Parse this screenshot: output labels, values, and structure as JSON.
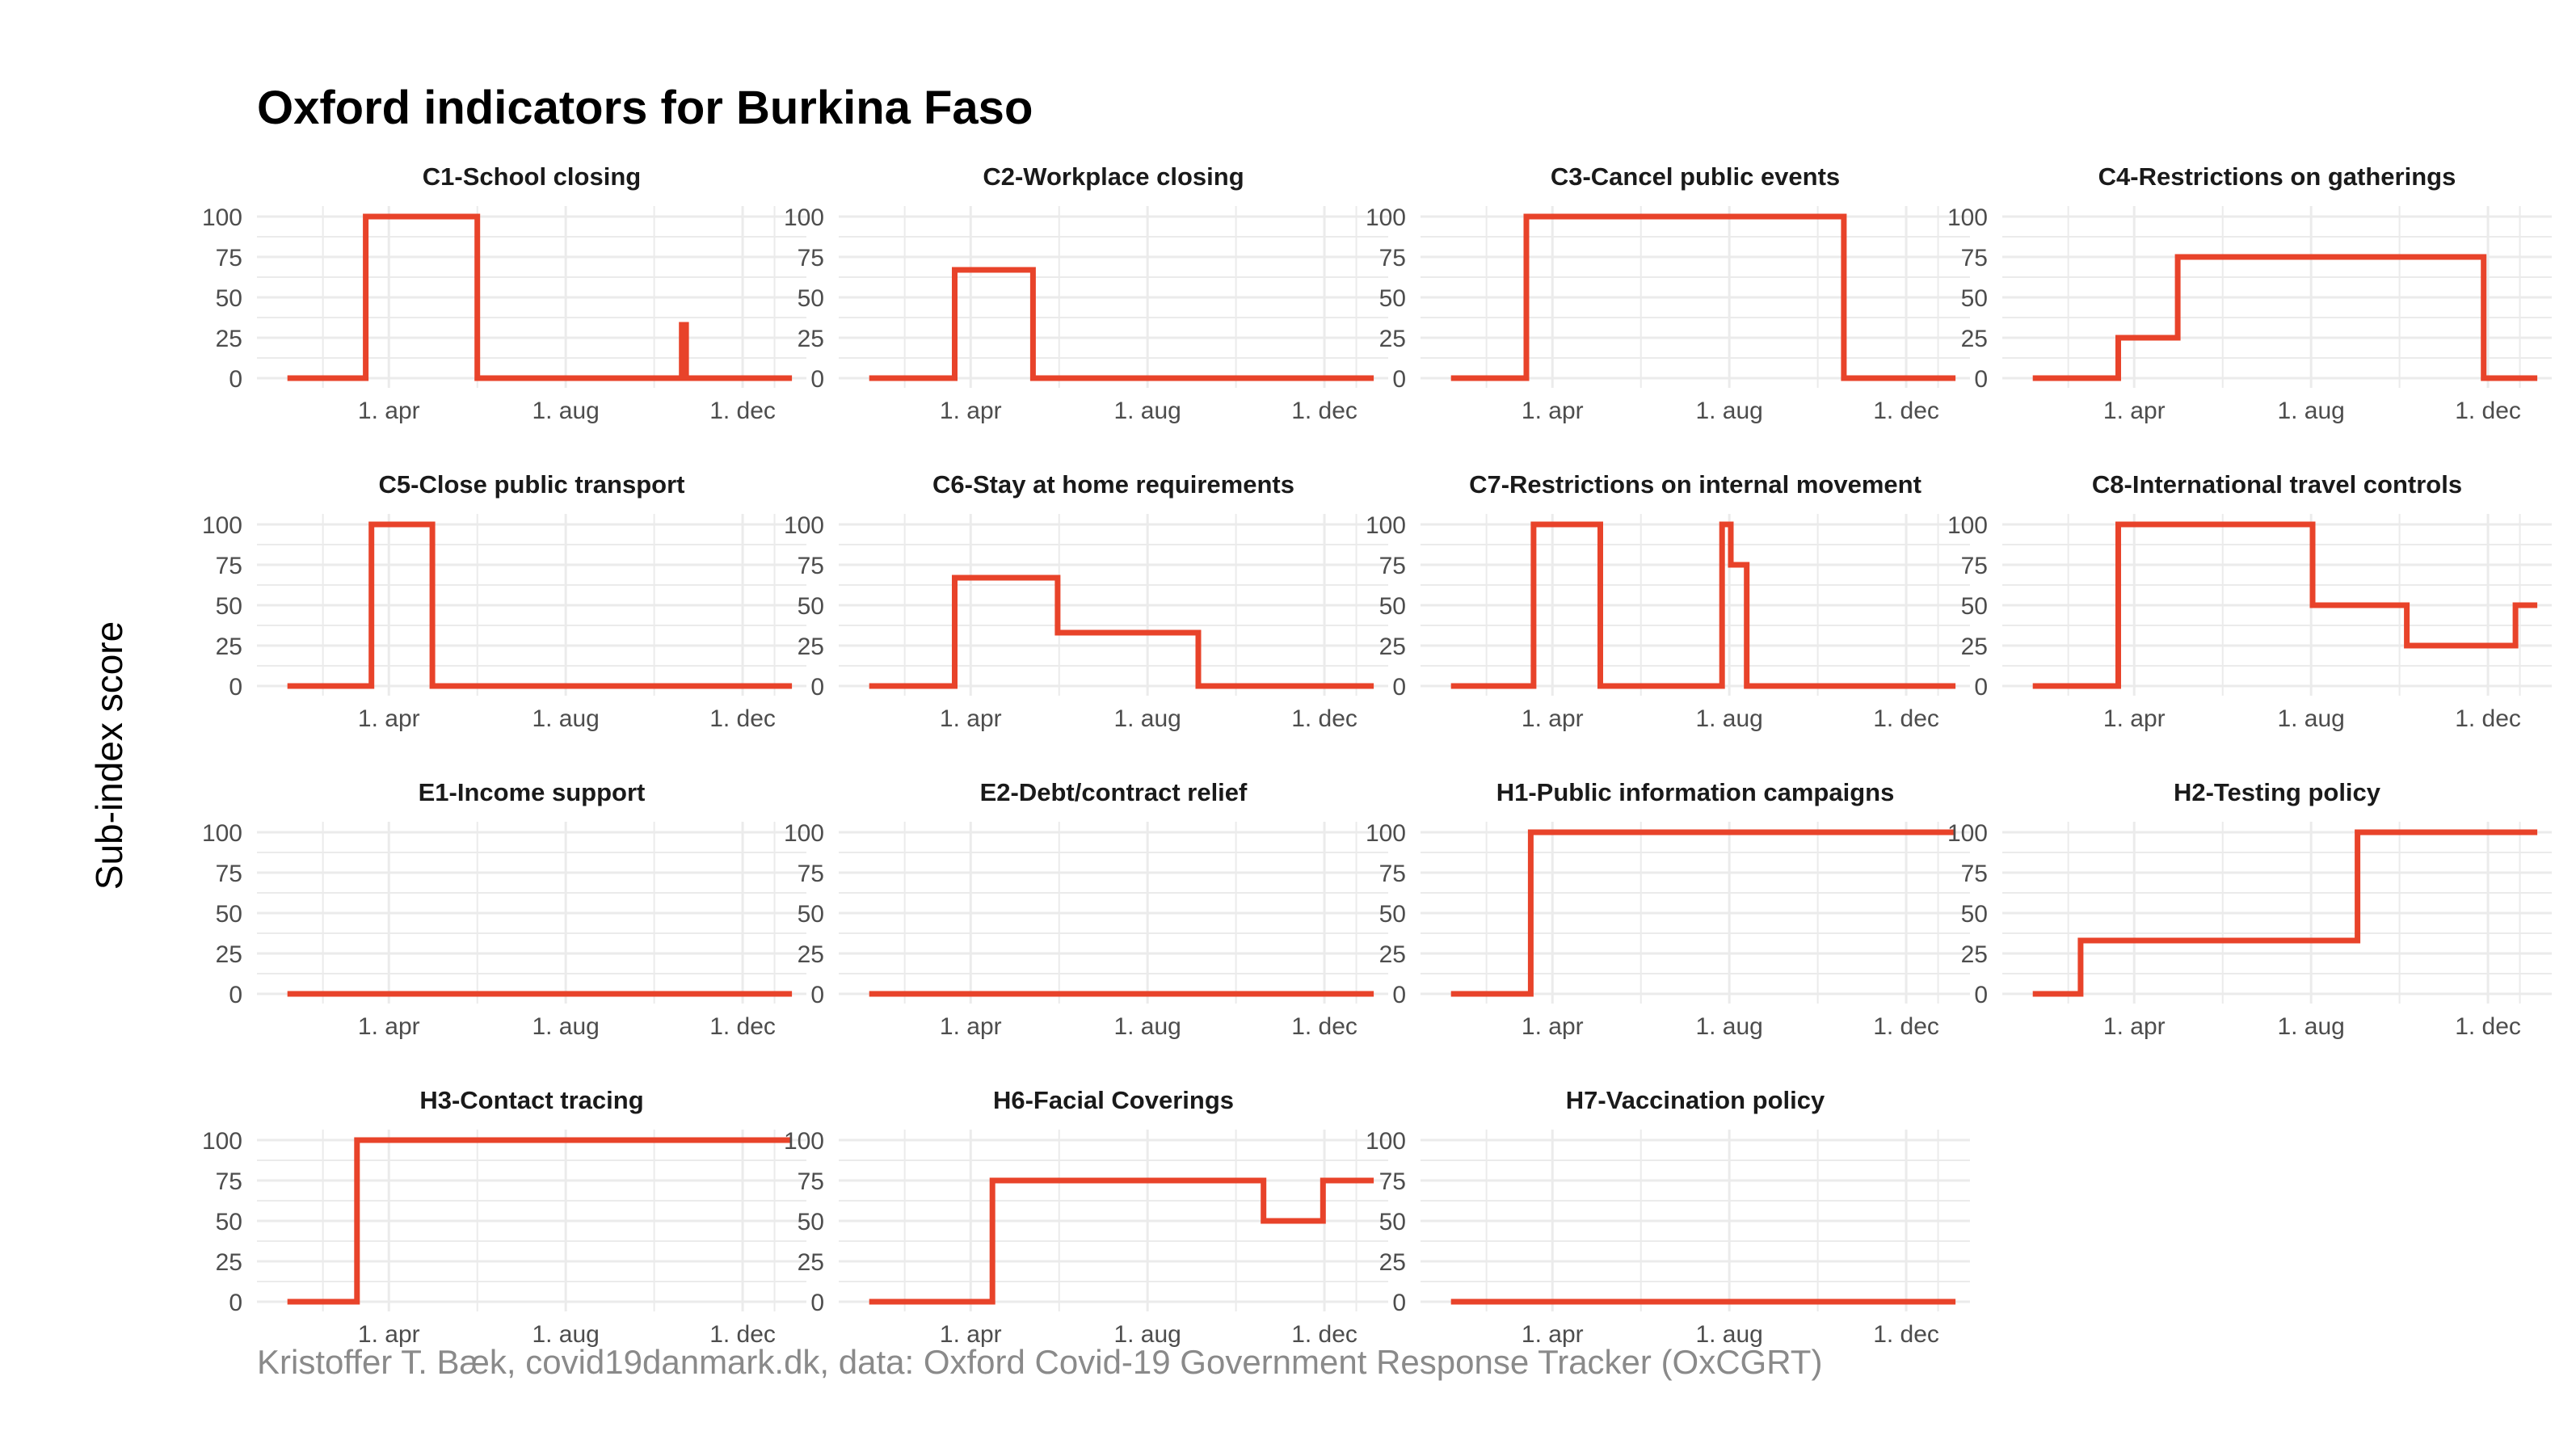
{
  "title": "Oxford indicators for Burkina Faso",
  "ylabel": "Sub-index score",
  "caption": "Kristoffer T. Bæk, covid19danmark.dk, data: Oxford Covid-19 Government Response Tracker (OxCGRT)",
  "colors": {
    "line": "#e8432a",
    "grid": "#ebebeb",
    "tick_text": "#4d4d4d"
  },
  "chart_data": {
    "type": "line",
    "layout": "facet-grid-4-columns",
    "xlabel": "",
    "ylabel": "Sub-index score",
    "xlim": [
      "2020-01-01",
      "2021-01-14"
    ],
    "ylim": [
      0,
      100
    ],
    "x_ticks": [
      {
        "date": "2020-04-01",
        "label": "1. apr"
      },
      {
        "date": "2020-08-01",
        "label": "1. aug"
      },
      {
        "date": "2020-12-01",
        "label": "1. dec"
      }
    ],
    "y_ticks": [
      0,
      25,
      50,
      75,
      100
    ],
    "grid": true,
    "legend": "none",
    "facets": [
      {
        "title": "C1-School closing",
        "steps": [
          [
            "2020-01-22",
            0
          ],
          [
            "2020-03-16",
            100
          ],
          [
            "2020-06-01",
            0
          ],
          [
            "2020-10-20",
            33
          ],
          [
            "2020-10-23",
            0
          ],
          [
            "2021-01-04",
            0
          ]
        ]
      },
      {
        "title": "C2-Workplace closing",
        "steps": [
          [
            "2020-01-22",
            0
          ],
          [
            "2020-03-21",
            67
          ],
          [
            "2020-05-14",
            0
          ],
          [
            "2021-01-04",
            0
          ]
        ]
      },
      {
        "title": "C3-Cancel public events",
        "steps": [
          [
            "2020-01-22",
            0
          ],
          [
            "2020-03-14",
            100
          ],
          [
            "2020-10-19",
            0
          ],
          [
            "2021-01-04",
            0
          ]
        ]
      },
      {
        "title": "C4-Restrictions on gatherings",
        "steps": [
          [
            "2020-01-22",
            0
          ],
          [
            "2020-03-21",
            25
          ],
          [
            "2020-05-01",
            75
          ],
          [
            "2020-11-28",
            0
          ],
          [
            "2021-01-04",
            0
          ]
        ]
      },
      {
        "title": "C5-Close public transport",
        "steps": [
          [
            "2020-01-22",
            0
          ],
          [
            "2020-03-20",
            100
          ],
          [
            "2020-05-01",
            0
          ],
          [
            "2021-01-04",
            0
          ]
        ]
      },
      {
        "title": "C6-Stay at home requirements",
        "steps": [
          [
            "2020-01-22",
            0
          ],
          [
            "2020-03-21",
            67
          ],
          [
            "2020-05-31",
            33
          ],
          [
            "2020-09-05",
            0
          ],
          [
            "2021-01-04",
            0
          ]
        ]
      },
      {
        "title": "C7-Restrictions on internal movement",
        "steps": [
          [
            "2020-01-22",
            0
          ],
          [
            "2020-03-19",
            100
          ],
          [
            "2020-05-04",
            0
          ],
          [
            "2020-07-27",
            100
          ],
          [
            "2020-08-02",
            75
          ],
          [
            "2020-08-13",
            0
          ],
          [
            "2021-01-04",
            0
          ]
        ]
      },
      {
        "title": "C8-International travel controls",
        "steps": [
          [
            "2020-01-22",
            0
          ],
          [
            "2020-03-21",
            100
          ],
          [
            "2020-08-02",
            50
          ],
          [
            "2020-10-06",
            25
          ],
          [
            "2020-12-20",
            50
          ],
          [
            "2021-01-04",
            50
          ]
        ]
      },
      {
        "title": "E1-Income support",
        "steps": [
          [
            "2020-01-22",
            0
          ],
          [
            "2021-01-04",
            0
          ]
        ]
      },
      {
        "title": "E2-Debt/contract relief",
        "steps": [
          [
            "2020-01-22",
            0
          ],
          [
            "2021-01-04",
            0
          ]
        ]
      },
      {
        "title": "H1-Public information campaigns",
        "steps": [
          [
            "2020-01-22",
            0
          ],
          [
            "2020-03-17",
            100
          ],
          [
            "2021-01-04",
            100
          ]
        ]
      },
      {
        "title": "H2-Testing policy",
        "steps": [
          [
            "2020-01-22",
            0
          ],
          [
            "2020-02-24",
            33
          ],
          [
            "2020-09-02",
            100
          ],
          [
            "2021-01-04",
            100
          ]
        ]
      },
      {
        "title": "H3-Contact tracing",
        "steps": [
          [
            "2020-01-22",
            0
          ],
          [
            "2020-03-10",
            100
          ],
          [
            "2021-01-04",
            100
          ]
        ]
      },
      {
        "title": "H6-Facial Coverings",
        "steps": [
          [
            "2020-01-22",
            0
          ],
          [
            "2020-04-16",
            75
          ],
          [
            "2020-10-20",
            50
          ],
          [
            "2020-11-30",
            75
          ],
          [
            "2021-01-04",
            75
          ]
        ]
      },
      {
        "title": "H7-Vaccination policy",
        "steps": [
          [
            "2020-01-22",
            0
          ],
          [
            "2021-01-04",
            0
          ]
        ]
      }
    ]
  }
}
